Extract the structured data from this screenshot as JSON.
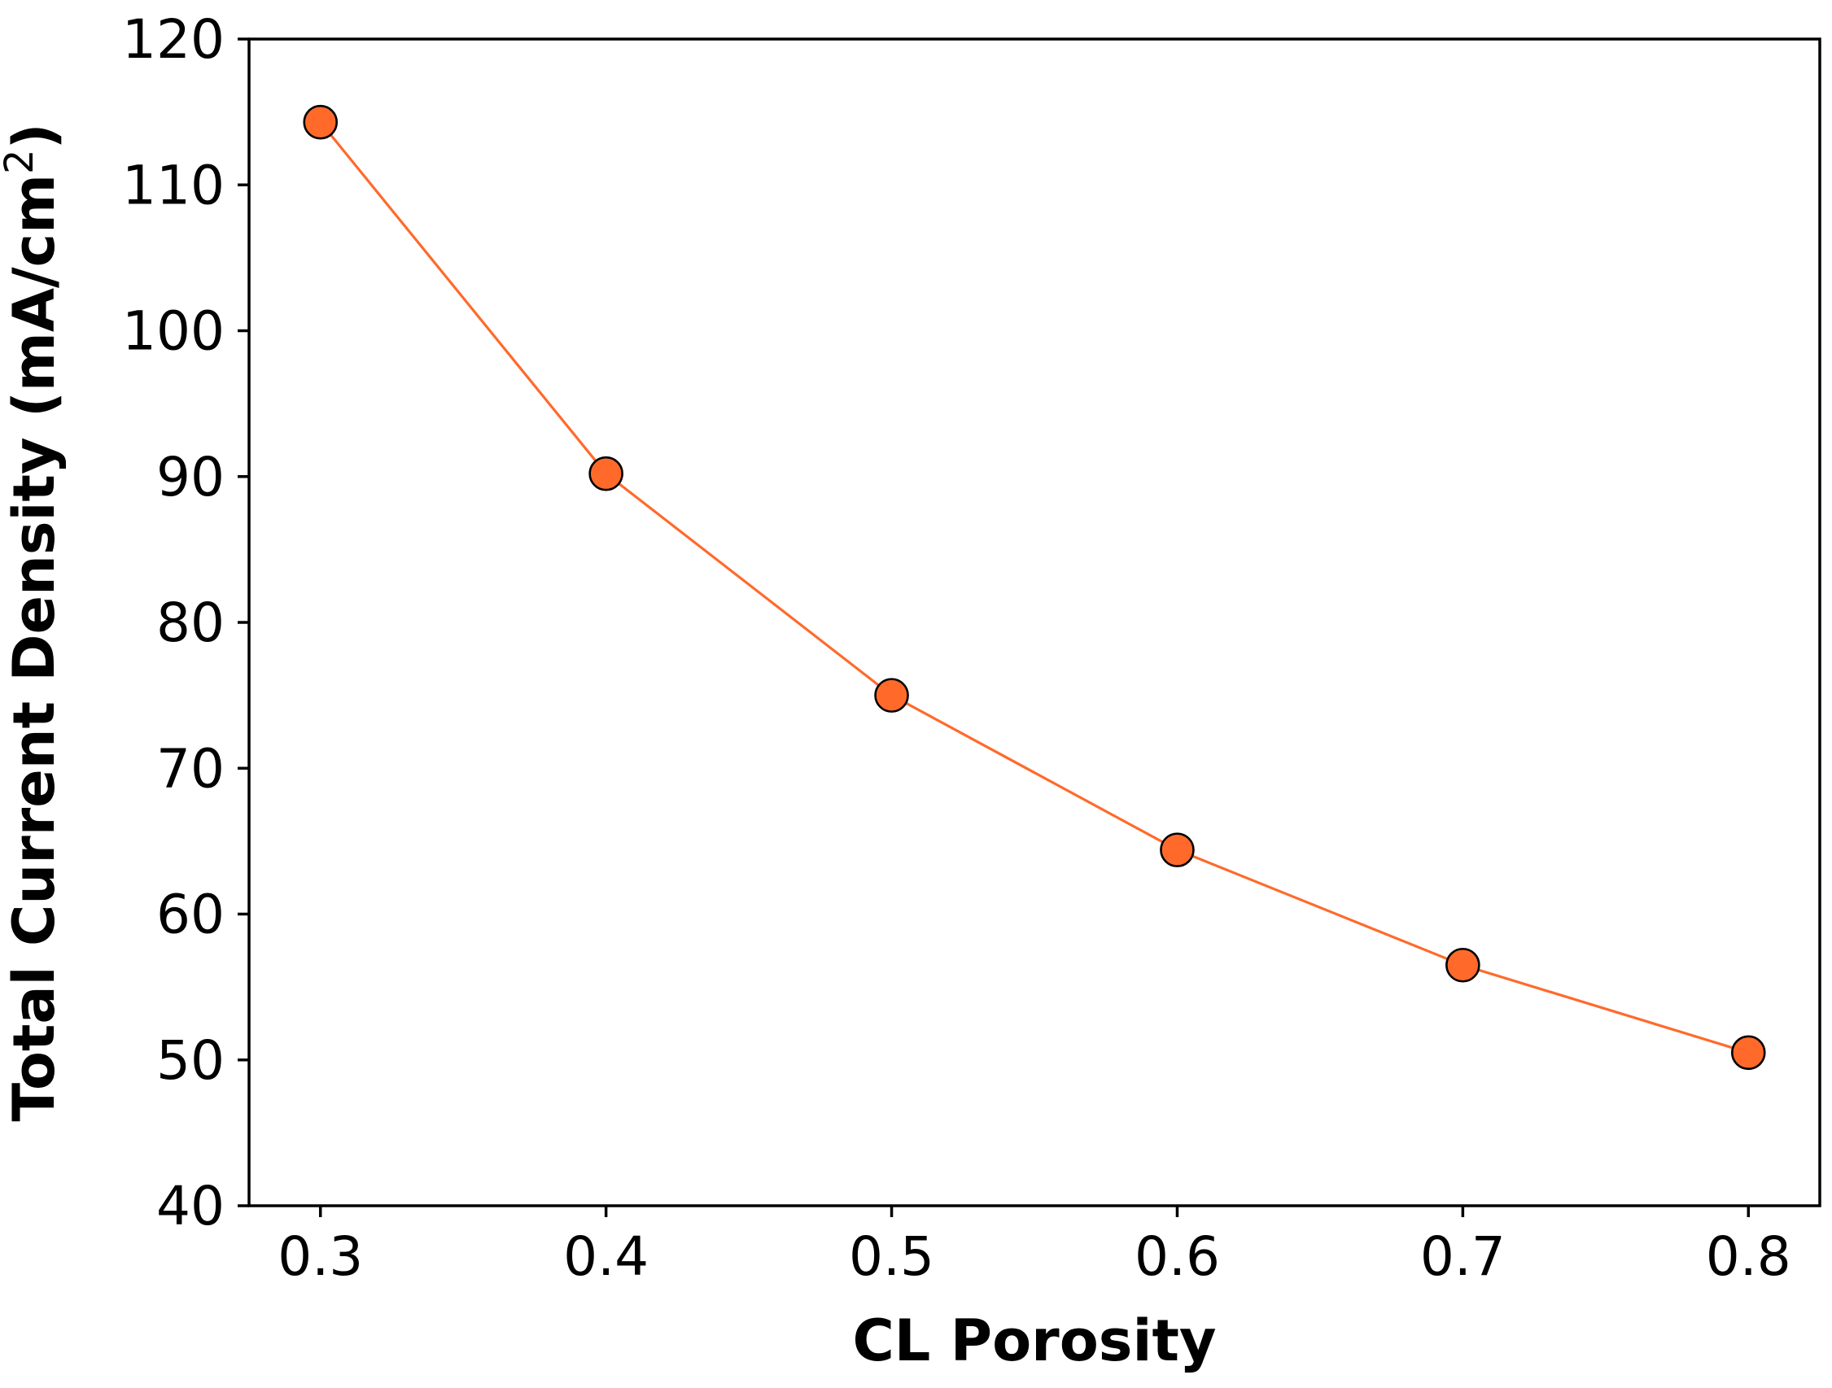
{
  "chart_data": {
    "type": "line",
    "title": "",
    "xlabel": "CL Porosity",
    "ylabel": "Total Current Density (mA/cm",
    "ylabel_superscript": "2",
    "ylabel_close": ")",
    "x": [
      0.3,
      0.4,
      0.5,
      0.6,
      0.7,
      0.8
    ],
    "series": [
      {
        "name": "Total Current Density",
        "values": [
          114.3,
          90.2,
          75.0,
          64.4,
          56.5,
          50.5
        ],
        "color": "#ff6a2b",
        "marker": "circle"
      }
    ],
    "xlim": [
      0.275,
      0.825
    ],
    "ylim": [
      40,
      120
    ],
    "xticks": [
      0.3,
      0.4,
      0.5,
      0.6,
      0.7,
      0.8
    ],
    "xtick_labels": [
      "0.3",
      "0.4",
      "0.5",
      "0.6",
      "0.7",
      "0.8"
    ],
    "yticks": [
      40,
      50,
      60,
      70,
      80,
      90,
      100,
      110,
      120
    ],
    "ytick_labels": [
      "40",
      "50",
      "60",
      "70",
      "80",
      "90",
      "100",
      "110",
      "120"
    ],
    "grid": false,
    "legend": "none"
  }
}
